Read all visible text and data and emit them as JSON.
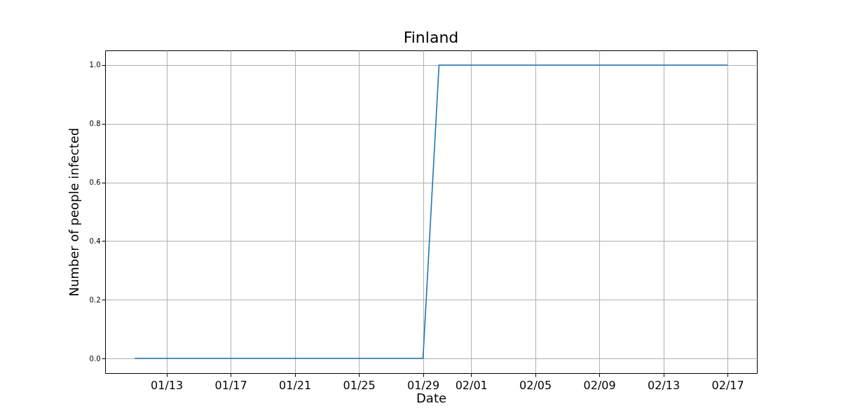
{
  "chart_data": {
    "type": "line",
    "title": "Finland",
    "xlabel": "Date",
    "ylabel": "Number of people infected",
    "x": [
      "--01-11",
      "--01-29",
      "--01-30",
      "--02-17"
    ],
    "series": [
      {
        "color": "#1f77b4",
        "values": [
          0,
          0,
          1,
          1
        ]
      }
    ],
    "xlim": [
      "--01-09T04:00",
      "--02-18T20:00"
    ],
    "xticks": [
      {
        "value": "--01-13",
        "label": "01/13"
      },
      {
        "value": "--01-17",
        "label": "01/17"
      },
      {
        "value": "--01-21",
        "label": "01/21"
      },
      {
        "value": "--01-25",
        "label": "01/25"
      },
      {
        "value": "--01-29",
        "label": "01/29"
      },
      {
        "value": "--02-01",
        "label": "02/01"
      },
      {
        "value": "--02-05",
        "label": "02/05"
      },
      {
        "value": "--02-09",
        "label": "02/09"
      },
      {
        "value": "--02-13",
        "label": "02/13"
      },
      {
        "value": "--02-17",
        "label": "02/17"
      }
    ],
    "ylim": [
      -0.05,
      1.05
    ],
    "yticks": [
      {
        "value": 0,
        "label": "0.0"
      },
      {
        "value": 0.2,
        "label": "0.2"
      },
      {
        "value": 0.4,
        "label": "0.4"
      },
      {
        "value": 0.6,
        "label": "0.6"
      },
      {
        "value": 0.8,
        "label": "0.8"
      },
      {
        "value": 1,
        "label": "1.0"
      }
    ],
    "grid": true
  }
}
